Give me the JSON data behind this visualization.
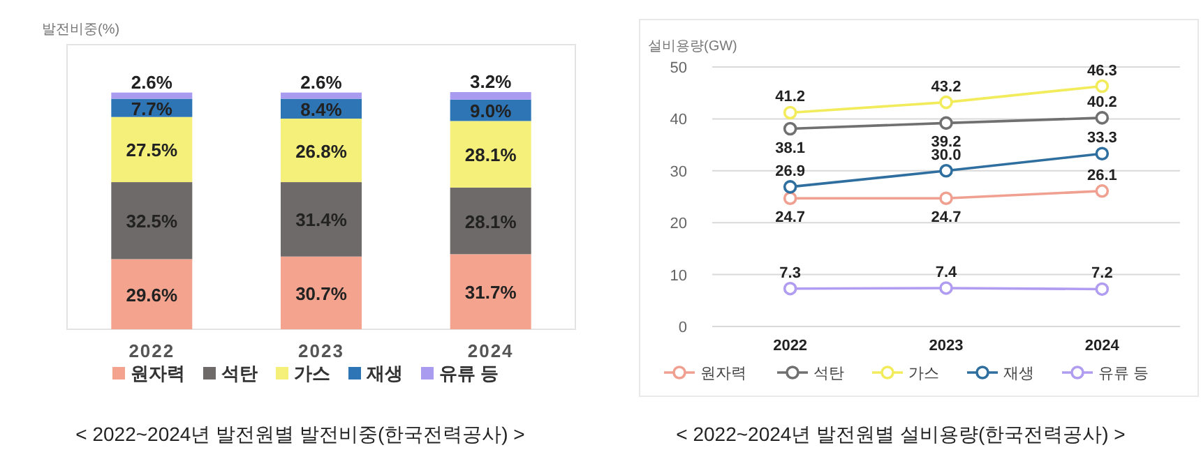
{
  "chart_data": [
    {
      "type": "bar",
      "stacked": true,
      "ylabel": "발전비중(%)",
      "categories": [
        "2022",
        "2023",
        "2024"
      ],
      "data_labels": true,
      "legend": "bottom",
      "grid": false,
      "series": [
        {
          "name": "원자력",
          "color": "#f4a48e",
          "values": [
            29.6,
            30.7,
            31.7
          ],
          "value_labels": [
            "29.6%",
            "30.7%",
            "31.7%"
          ]
        },
        {
          "name": "석탄",
          "color": "#6f6a6a",
          "values": [
            32.5,
            31.4,
            28.1
          ],
          "value_labels": [
            "32.5%",
            "31.4%",
            "28.1%"
          ]
        },
        {
          "name": "가스",
          "color": "#f5f07a",
          "values": [
            27.5,
            26.8,
            28.1
          ],
          "value_labels": [
            "27.5%",
            "26.8%",
            "28.1%"
          ]
        },
        {
          "name": "재생",
          "color": "#2e75b6",
          "values": [
            7.7,
            8.4,
            9.0
          ],
          "value_labels": [
            "7.7%",
            "8.4%",
            "9.0%"
          ]
        },
        {
          "name": "유류 등",
          "color": "#a99cf0",
          "values": [
            2.6,
            2.6,
            3.2
          ],
          "value_labels": [
            "2.6%",
            "2.6%",
            "3.2%"
          ]
        }
      ],
      "annotations": [
        "< 2022~2024년 발전원별 발전비중(한국전력공사) >"
      ]
    },
    {
      "type": "line",
      "ylabel": "설비용량(GW)",
      "categories": [
        "2022",
        "2023",
        "2024"
      ],
      "ylim": [
        0,
        50
      ],
      "yticks": [
        0,
        10,
        20,
        30,
        40,
        50
      ],
      "grid": "y",
      "marker": "circle",
      "data_labels": true,
      "legend": "bottom",
      "series": [
        {
          "name": "원자력",
          "color": "#f0a090",
          "values": [
            24.7,
            24.7,
            26.1
          ]
        },
        {
          "name": "석탄",
          "color": "#707070",
          "values": [
            38.1,
            39.2,
            40.2
          ]
        },
        {
          "name": "가스",
          "color": "#f2ec5c",
          "values": [
            41.2,
            43.2,
            46.3
          ]
        },
        {
          "name": "재생",
          "color": "#2f6f9f",
          "values": [
            26.9,
            30.0,
            33.3
          ],
          "value_labels": [
            "26.9",
            "30.0",
            "33.3"
          ]
        },
        {
          "name": "유류 등",
          "color": "#b09cf0",
          "values": [
            7.3,
            7.4,
            7.2
          ]
        }
      ],
      "annotations": [
        "< 2022~2024년 발전원별 설비용량(한국전력공사) >"
      ]
    }
  ]
}
